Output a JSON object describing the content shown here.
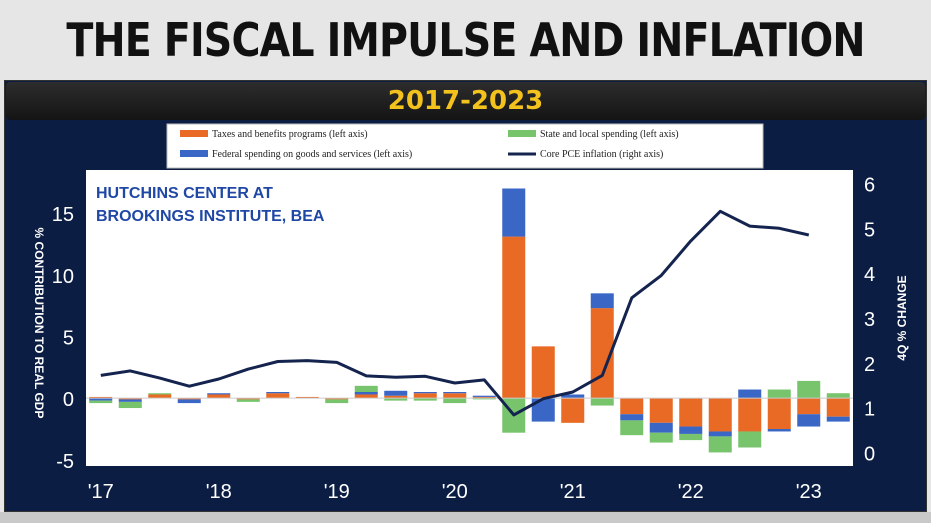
{
  "headline": "THE FISCAL IMPULSE AND INFLATION",
  "subtitle": "2017-2023",
  "source_note_line1": "HUTCHINS CENTER AT",
  "source_note_line2": "BROOKINGS INSTITUTE, BEA",
  "chart_data": {
    "type": "bar",
    "stacked": true,
    "ylabel": "% CONTRIBUTION TO REAL GDP",
    "y2label": "4Q % CHANGE",
    "ylim": [
      -5.5,
      18.5
    ],
    "y2lim": [
      -0.3,
      6.3
    ],
    "yticks": [
      -5,
      0,
      5,
      10,
      15
    ],
    "y2ticks": [
      0,
      1,
      2,
      3,
      4,
      5,
      6
    ],
    "x_tick_labels": [
      "'17",
      "'18",
      "'19",
      "'20",
      "'21",
      "'22",
      "'23"
    ],
    "categories": [
      "2017Q1",
      "2017Q2",
      "2017Q3",
      "2017Q4",
      "2018Q1",
      "2018Q2",
      "2018Q3",
      "2018Q4",
      "2019Q1",
      "2019Q2",
      "2019Q3",
      "2019Q4",
      "2020Q1",
      "2020Q2",
      "2020Q3",
      "2020Q4",
      "2021Q1",
      "2021Q2",
      "2021Q3",
      "2021Q4",
      "2022Q1",
      "2022Q2",
      "2022Q3",
      "2022Q4",
      "2023Q1",
      "2023Q2"
    ],
    "series": [
      {
        "name": "Taxes and benefits programs (left axis)",
        "color": "#e86a25",
        "values": [
          0.1,
          -0.1,
          0.3,
          -0.1,
          0.3,
          -0.1,
          0.4,
          0.1,
          -0.1,
          0.3,
          0.2,
          0.4,
          0.4,
          0.1,
          13.1,
          4.2,
          -2.0,
          7.3,
          -1.3,
          -2.0,
          -2.3,
          -2.7,
          -2.7,
          -2.5,
          -1.3,
          -1.5
        ]
      },
      {
        "name": "Federal spending on goods and services (left axis)",
        "color": "#3a66c6",
        "values": [
          -0.2,
          -0.2,
          0.0,
          -0.3,
          0.1,
          0.0,
          0.1,
          0.0,
          0.0,
          0.2,
          0.4,
          0.1,
          0.1,
          0.1,
          3.9,
          -1.9,
          0.3,
          1.2,
          -0.5,
          -0.8,
          -0.6,
          -0.4,
          0.7,
          -0.2,
          -1.0,
          -0.4
        ]
      },
      {
        "name": "State and local spending (left axis)",
        "color": "#77c46d",
        "values": [
          -0.2,
          -0.5,
          0.1,
          0.0,
          0.0,
          -0.2,
          0.0,
          0.0,
          -0.3,
          0.5,
          -0.2,
          -0.2,
          -0.4,
          -0.1,
          -2.8,
          0.0,
          0.0,
          -0.6,
          -1.2,
          -0.8,
          -0.5,
          -1.3,
          -1.3,
          0.7,
          1.4,
          0.4
        ]
      },
      {
        "name": "Core PCE inflation (right axis)",
        "color": "#14244e",
        "axis": "right",
        "values": [
          1.72,
          1.82,
          1.66,
          1.48,
          1.64,
          1.86,
          2.03,
          2.05,
          2.01,
          1.71,
          1.68,
          1.7,
          1.55,
          1.62,
          0.84,
          1.2,
          1.35,
          1.72,
          3.45,
          3.95,
          4.72,
          5.38,
          5.05,
          5.0,
          4.85,
          null
        ]
      }
    ]
  }
}
